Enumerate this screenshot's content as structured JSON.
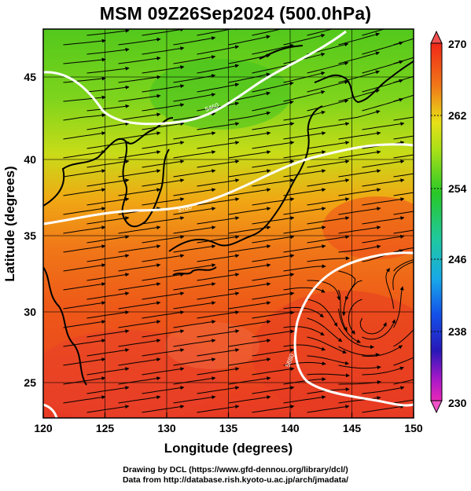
{
  "title": "MSM 09Z26Sep2024 (500.0hPa)",
  "map": {
    "xlabel": "Longitude (degrees)",
    "ylabel": "Latitude  (degrees)",
    "x_ticks": [
      "120",
      "125",
      "130",
      "135",
      "140",
      "145",
      "150"
    ],
    "y_ticks": [
      "45",
      "40",
      "35",
      "30",
      "25"
    ],
    "contour_labels": [
      "5460",
      "5700",
      "5880"
    ]
  },
  "colorbar": {
    "ticks": [
      "270",
      "262",
      "254",
      "246",
      "238",
      "230"
    ]
  },
  "footer": {
    "line1": "Drawing by DCL (https://www.gfd-dennou.org/library/dcl/)",
    "line2": "Data from http://database.rish.kyoto-u.ac.jp/arch/jmadata/"
  }
}
